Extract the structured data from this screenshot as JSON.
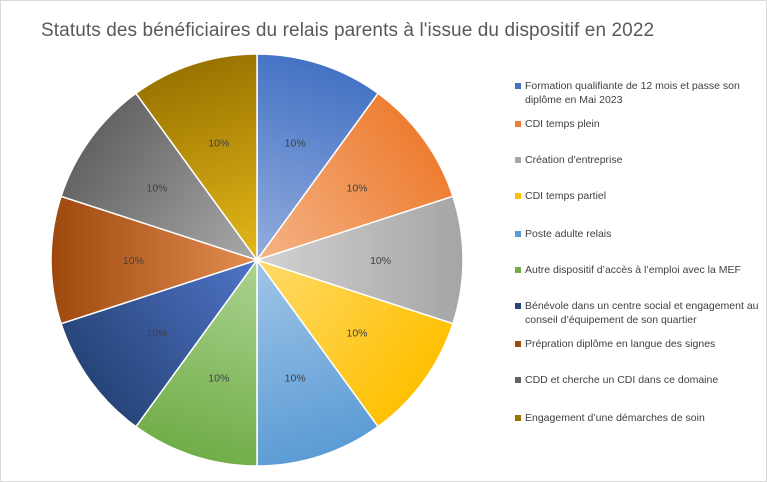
{
  "chart_data": {
    "type": "pie",
    "title": "Statuts des bénéficiaires du relais parents à l'issue du dispositif en 2022",
    "legend_position": "right",
    "categories": [
      "Formation qualifiante de 12 mois et passe son diplôme en Mai 2023",
      "CDI temps plein",
      "Création d’entreprise",
      "CDI temps partiel",
      "Poste adulte relais",
      "Autre dispositif d’accès à l’emploi avec la MEF",
      "Bénévole dans un centre social et engagement au conseil d’équipement de son quartier",
      "Prépration diplôme en langue des signes",
      "CDD et cherche un CDI dans ce domaine",
      "Engagement d’une démarches de soin"
    ],
    "values": [
      10,
      10,
      10,
      10,
      10,
      10,
      10,
      10,
      10,
      10
    ],
    "data_labels": [
      "10%",
      "10%",
      "10%",
      "10%",
      "10%",
      "10%",
      "10%",
      "10%",
      "10%",
      "10%"
    ],
    "colors": [
      "#4472c4",
      "#ed7d31",
      "#a5a5a5",
      "#ffc000",
      "#5b9bd5",
      "#70ad47",
      "#264478",
      "#9e480e",
      "#636363",
      "#997300"
    ],
    "colors_light": [
      "#8faadc",
      "#f4b183",
      "#d0d0d0",
      "#ffd966",
      "#9dc3e6",
      "#a9d18e",
      "#4e72c4",
      "#e08a4e",
      "#a6a6a6",
      "#e0b518"
    ]
  }
}
